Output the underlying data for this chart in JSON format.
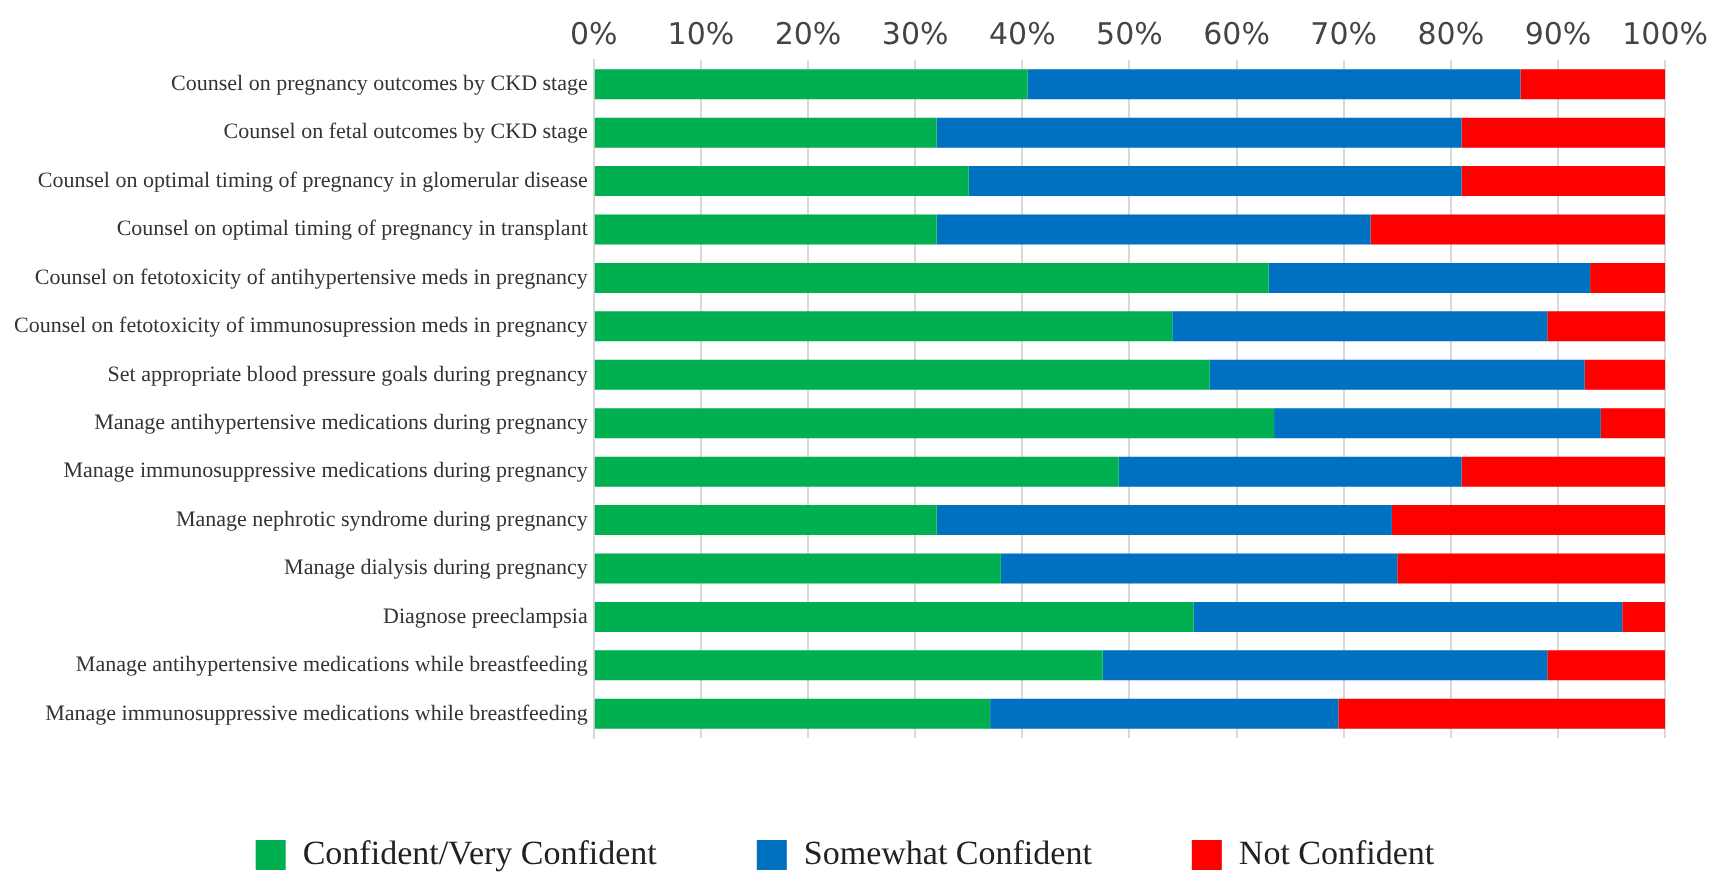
{
  "chart_data": {
    "type": "bar",
    "orientation": "horizontal",
    "stacked": true,
    "categories": [
      "Counsel on pregnancy outcomes by CKD stage",
      "Counsel on fetal outcomes by CKD stage",
      "Counsel on optimal timing of pregnancy in glomerular disease",
      "Counsel on optimal timing of pregnancy in transplant",
      "Counsel on fetotoxicity of antihypertensive meds in pregnancy",
      "Counsel on fetotoxicity of immunosupression meds in pregnancy",
      "Set appropriate blood pressure goals during pregnancy",
      "Manage antihypertensive medications during pregnancy",
      "Manage immunosuppressive medications during pregnancy",
      "Manage nephrotic syndrome during pregnancy",
      "Manage dialysis during pregnancy",
      "Diagnose preeclampsia",
      "Manage antihypertensive medications while breastfeeding",
      "Manage immunosuppressive medications while breastfeeding"
    ],
    "series": [
      {
        "name": "Confident/Very Confident",
        "color": "#00b050",
        "values": [
          40.5,
          32,
          35,
          32,
          63,
          54,
          57.5,
          63.5,
          49,
          32,
          38,
          56,
          47.5,
          37
        ]
      },
      {
        "name": "Somewhat Confident",
        "color": "#0070c0",
        "values": [
          46,
          49,
          46,
          40.5,
          30,
          35,
          35,
          30.5,
          32,
          42.5,
          37,
          40,
          41.5,
          32.5
        ]
      },
      {
        "name": "Not Confident",
        "color": "#ff0000",
        "values": [
          13.5,
          19,
          19,
          27.5,
          7,
          11,
          7.5,
          6,
          19,
          25.5,
          25,
          4,
          11,
          30.5
        ]
      }
    ],
    "xlim": [
      0,
      100
    ],
    "xticks": [
      {
        "value": 0,
        "label": "0%"
      },
      {
        "value": 10,
        "label": "10%"
      },
      {
        "value": 20,
        "label": "20%"
      },
      {
        "value": 30,
        "label": "30%"
      },
      {
        "value": 40,
        "label": "40%"
      },
      {
        "value": 50,
        "label": "50%"
      },
      {
        "value": 60,
        "label": "60%"
      },
      {
        "value": 70,
        "label": "70%"
      },
      {
        "value": 80,
        "label": "80%"
      },
      {
        "value": 90,
        "label": "90%"
      },
      {
        "value": 100,
        "label": "100%"
      }
    ],
    "grid": "x",
    "legend": "bottom"
  }
}
